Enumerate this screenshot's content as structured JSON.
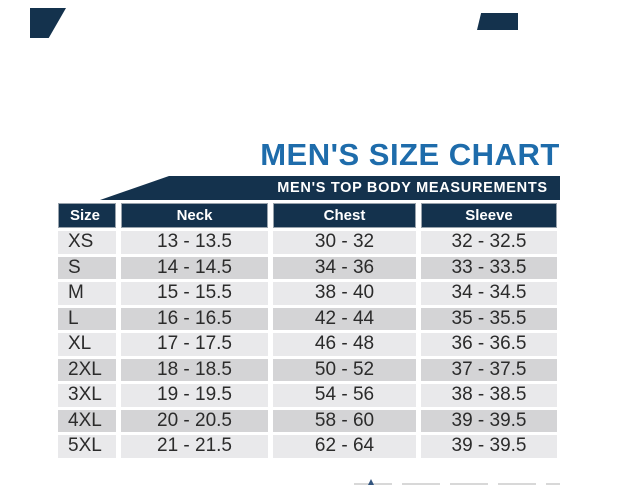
{
  "page": {
    "title": "MEN'S SIZE CHART",
    "banner": "MEN'S TOP BODY MEASUREMENTS"
  },
  "colors": {
    "navy": "#14324d",
    "title_blue": "#1e6cab",
    "row_light": "#e9e9eb",
    "row_dark": "#d4d4d6",
    "data_text": "#2b2b2b",
    "header_text": "#ffffff",
    "header_border": "#98a2ac",
    "edge_line": "#d8d8d8",
    "edge_mark": "#33557f"
  },
  "chart_data": {
    "type": "table",
    "title": "MEN'S SIZE CHART",
    "subtitle": "MEN'S TOP BODY MEASUREMENTS",
    "columns": [
      "Size",
      "Neck",
      "Chest",
      "Sleeve"
    ],
    "rows": [
      [
        "XS",
        "13 - 13.5",
        "30 - 32",
        "32 - 32.5"
      ],
      [
        "S",
        "14 - 14.5",
        "34 - 36",
        "33 - 33.5"
      ],
      [
        "M",
        "15 - 15.5",
        "38 - 40",
        "34 - 34.5"
      ],
      [
        "L",
        "16 - 16.5",
        "42 - 44",
        "35 - 35.5"
      ],
      [
        "XL",
        "17 - 17.5",
        "46 - 48",
        "36 - 36.5"
      ],
      [
        "2XL",
        "18 - 18.5",
        "50 - 52",
        "37 - 37.5"
      ],
      [
        "3XL",
        "19 - 19.5",
        "54 - 56",
        "38 - 38.5"
      ],
      [
        "4XL",
        "20 - 20.5",
        "58 - 60",
        "39 - 39.5"
      ],
      [
        "5XL",
        "21 - 21.5",
        "62 - 64",
        "39 - 39.5"
      ]
    ],
    "layout": {
      "row_striping": "light/dark alternating starting light",
      "header_bg": "navy",
      "grid": "white gaps between cells"
    }
  }
}
